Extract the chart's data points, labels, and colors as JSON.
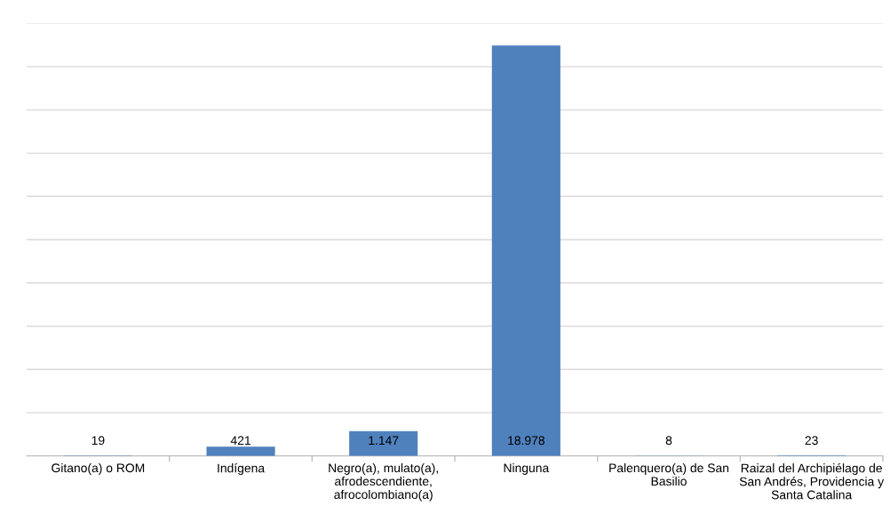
{
  "chart_data": {
    "type": "bar",
    "categories": [
      "Gitano(a) o ROM",
      "Indígena",
      "Negro(a), mulato(a),\nafrodescendiente,\nafrocolombiano(a)",
      "Ninguna",
      "Palenquero(a) de San\nBasilio",
      "Raizal del Archipiélago de\nSan Andrés, Providencia y\nSanta Catalina"
    ],
    "values": [
      19,
      421,
      1147,
      18978,
      8,
      23
    ],
    "value_labels": [
      "19",
      "421",
      "1.147",
      "18.978",
      "8",
      "23"
    ],
    "color": "#4f81bd",
    "ylim": [
      0,
      20000
    ],
    "yticks": [
      {
        "value": 0,
        "label": null
      },
      {
        "value": 2000,
        "label": null
      },
      {
        "value": 4000,
        "label": null
      },
      {
        "value": 6000,
        "label": null
      },
      {
        "value": 8000,
        "label": null
      },
      {
        "value": 10000,
        "label": null
      },
      {
        "value": 12000,
        "label": null
      },
      {
        "value": 14000,
        "label": null
      },
      {
        "value": 16000,
        "label": null
      },
      {
        "value": 18000,
        "label": null
      },
      {
        "value": 20000,
        "label": null
      }
    ],
    "tick_labels": "x",
    "grid": "y",
    "legend": false
  }
}
